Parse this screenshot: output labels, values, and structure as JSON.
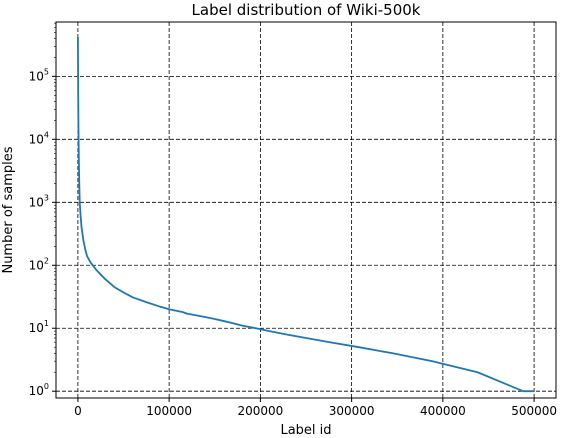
{
  "chart_data": {
    "type": "line",
    "title": "Label distribution of Wiki-500k",
    "xlabel": "Label id",
    "ylabel": "Number of samples",
    "xlim": [
      -24000,
      524000
    ],
    "ylim": [
      0.78,
      730000
    ],
    "yscale": "log",
    "grid": true,
    "grid_style": "dashed",
    "x_ticks": [
      0,
      100000,
      200000,
      300000,
      400000,
      500000
    ],
    "x_tick_labels": [
      "0",
      "100000",
      "200000",
      "300000",
      "400000",
      "500000"
    ],
    "y_ticks": [
      1,
      10,
      100,
      1000,
      10000,
      100000
    ],
    "y_tick_labels": [
      {
        "base": "10",
        "exp": "0"
      },
      {
        "base": "10",
        "exp": "1"
      },
      {
        "base": "10",
        "exp": "2"
      },
      {
        "base": "10",
        "exp": "3"
      },
      {
        "base": "10",
        "exp": "4"
      },
      {
        "base": "10",
        "exp": "5"
      }
    ],
    "series": [
      {
        "color": "#1f77b4",
        "points": [
          [
            0,
            420000
          ],
          [
            300,
            60000
          ],
          [
            600,
            15000
          ],
          [
            1000,
            5000
          ],
          [
            1500,
            2000
          ],
          [
            2000,
            1000
          ],
          [
            3000,
            600
          ],
          [
            4000,
            400
          ],
          [
            6000,
            250
          ],
          [
            8000,
            180
          ],
          [
            10000,
            140
          ],
          [
            14000,
            110
          ],
          [
            20000,
            85
          ],
          [
            30000,
            60
          ],
          [
            40000,
            45
          ],
          [
            50000,
            37
          ],
          [
            60000,
            31
          ],
          [
            75000,
            26
          ],
          [
            90000,
            22
          ],
          [
            100000,
            20
          ],
          [
            115000,
            18
          ],
          [
            120000,
            17
          ],
          [
            130000,
            16
          ],
          [
            140000,
            15
          ],
          [
            150000,
            14
          ],
          [
            160000,
            13
          ],
          [
            170000,
            12
          ],
          [
            180000,
            11
          ],
          [
            195000,
            10
          ],
          [
            210000,
            9
          ],
          [
            228000,
            8
          ],
          [
            250000,
            7
          ],
          [
            276000,
            6
          ],
          [
            308000,
            5
          ],
          [
            345000,
            4
          ],
          [
            388000,
            3
          ],
          [
            438000,
            2
          ],
          [
            488000,
            1
          ],
          [
            500000,
            1
          ]
        ]
      }
    ]
  }
}
